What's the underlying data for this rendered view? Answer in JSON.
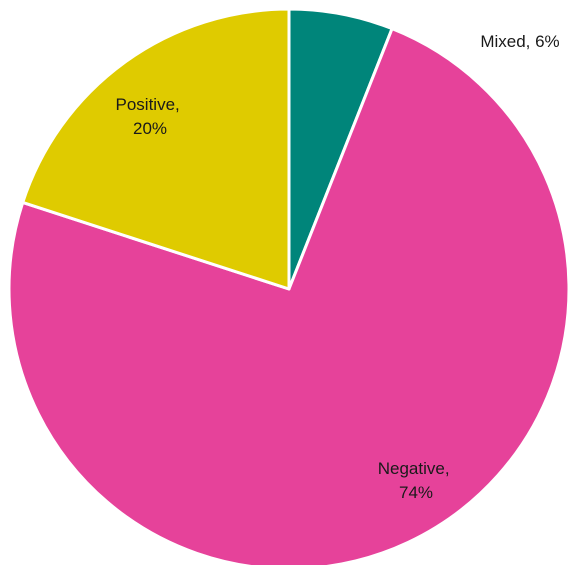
{
  "chart_data": {
    "type": "pie",
    "slices": [
      {
        "label": "Mixed",
        "value": 6,
        "label_line1": "Mixed, 6%",
        "label_line2": "",
        "color": "#00857A"
      },
      {
        "label": "Negative",
        "value": 74,
        "label_line1": "Negative,",
        "label_line2": "74%",
        "color": "#E6429A"
      },
      {
        "label": "Positive",
        "value": 20,
        "label_line1": "Positive,",
        "label_line2": "20%",
        "color": "#DFCB00"
      }
    ],
    "start_angle_deg": 0,
    "direction": "clockwise",
    "slice_border_color": "#ffffff"
  }
}
